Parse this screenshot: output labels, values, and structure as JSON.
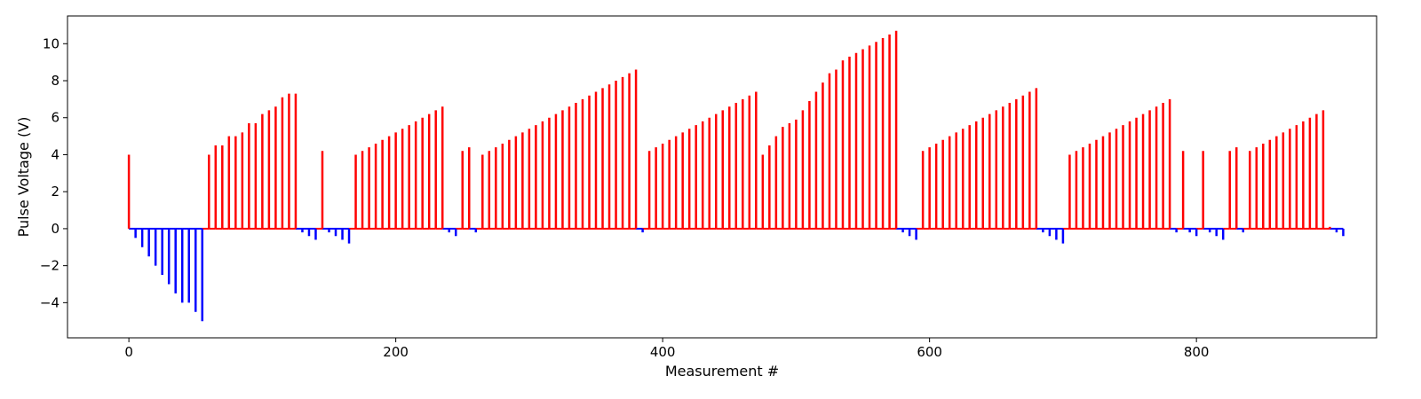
{
  "chart_data": {
    "type": "bar",
    "xlabel": "Measurement #",
    "ylabel": "Pulse Voltage (V)",
    "xlim": [
      -46,
      935
    ],
    "ylim": [
      -5.9,
      11.5
    ],
    "x_ticks": [
      0,
      200,
      400,
      600,
      800
    ],
    "y_ticks": [
      -4,
      -2,
      0,
      2,
      4,
      6,
      8,
      10
    ],
    "positive_color": "#ff0000",
    "negative_color": "#0000ff",
    "series": [
      {
        "values": [
          [
            0,
            4.0
          ],
          [
            5,
            -0.5
          ],
          [
            10,
            -1.0
          ],
          [
            15,
            -1.5
          ],
          [
            20,
            -2.0
          ],
          [
            25,
            -2.5
          ],
          [
            30,
            -3.0
          ],
          [
            35,
            -3.5
          ],
          [
            40,
            -4.0
          ],
          [
            45,
            -4.0
          ],
          [
            50,
            -4.5
          ],
          [
            55,
            -5.0
          ],
          [
            60,
            4.0
          ],
          [
            65,
            4.5
          ],
          [
            70,
            4.5
          ],
          [
            75,
            5.0
          ],
          [
            80,
            5.0
          ],
          [
            85,
            5.2
          ],
          [
            90,
            5.7
          ],
          [
            95,
            5.7
          ],
          [
            100,
            6.2
          ],
          [
            105,
            6.4
          ],
          [
            110,
            6.6
          ],
          [
            115,
            7.1
          ],
          [
            120,
            7.3
          ],
          [
            125,
            7.3
          ],
          [
            130,
            -0.2
          ],
          [
            135,
            -0.4
          ],
          [
            140,
            -0.6
          ],
          [
            145,
            4.2
          ],
          [
            150,
            -0.2
          ],
          [
            155,
            -0.4
          ],
          [
            160,
            -0.6
          ],
          [
            165,
            -0.8
          ],
          [
            170,
            4.0
          ],
          [
            175,
            4.2
          ],
          [
            180,
            4.4
          ],
          [
            185,
            4.6
          ],
          [
            190,
            4.8
          ],
          [
            195,
            5.0
          ],
          [
            200,
            5.2
          ],
          [
            205,
            5.4
          ],
          [
            210,
            5.6
          ],
          [
            215,
            5.8
          ],
          [
            220,
            6.0
          ],
          [
            225,
            6.2
          ],
          [
            230,
            6.4
          ],
          [
            235,
            6.6
          ],
          [
            240,
            -0.2
          ],
          [
            245,
            -0.4
          ],
          [
            250,
            4.2
          ],
          [
            255,
            4.4
          ],
          [
            260,
            -0.2
          ],
          [
            265,
            4.0
          ],
          [
            270,
            4.2
          ],
          [
            275,
            4.4
          ],
          [
            280,
            4.6
          ],
          [
            285,
            4.8
          ],
          [
            290,
            5.0
          ],
          [
            295,
            5.2
          ],
          [
            300,
            5.4
          ],
          [
            305,
            5.6
          ],
          [
            310,
            5.8
          ],
          [
            315,
            6.0
          ],
          [
            320,
            6.2
          ],
          [
            325,
            6.4
          ],
          [
            330,
            6.6
          ],
          [
            335,
            6.8
          ],
          [
            340,
            7.0
          ],
          [
            345,
            7.2
          ],
          [
            350,
            7.4
          ],
          [
            355,
            7.6
          ],
          [
            360,
            7.8
          ],
          [
            365,
            8.0
          ],
          [
            370,
            8.2
          ],
          [
            375,
            8.4
          ],
          [
            380,
            8.6
          ],
          [
            385,
            -0.2
          ],
          [
            390,
            4.2
          ],
          [
            395,
            4.4
          ],
          [
            400,
            4.6
          ],
          [
            405,
            4.8
          ],
          [
            410,
            5.0
          ],
          [
            415,
            5.2
          ],
          [
            420,
            5.4
          ],
          [
            425,
            5.6
          ],
          [
            430,
            5.8
          ],
          [
            435,
            6.0
          ],
          [
            440,
            6.2
          ],
          [
            445,
            6.4
          ],
          [
            450,
            6.6
          ],
          [
            455,
            6.8
          ],
          [
            460,
            7.0
          ],
          [
            465,
            7.2
          ],
          [
            470,
            7.4
          ],
          [
            475,
            4.0
          ],
          [
            480,
            4.5
          ],
          [
            485,
            5.0
          ],
          [
            490,
            5.5
          ],
          [
            495,
            5.7
          ],
          [
            500,
            5.9
          ],
          [
            505,
            6.4
          ],
          [
            510,
            6.9
          ],
          [
            515,
            7.4
          ],
          [
            520,
            7.9
          ],
          [
            525,
            8.4
          ],
          [
            530,
            8.6
          ],
          [
            535,
            9.1
          ],
          [
            540,
            9.3
          ],
          [
            545,
            9.5
          ],
          [
            550,
            9.7
          ],
          [
            555,
            9.9
          ],
          [
            560,
            10.1
          ],
          [
            565,
            10.3
          ],
          [
            570,
            10.5
          ],
          [
            575,
            10.7
          ],
          [
            580,
            -0.2
          ],
          [
            585,
            -0.4
          ],
          [
            590,
            -0.6
          ],
          [
            595,
            4.2
          ],
          [
            600,
            4.4
          ],
          [
            605,
            4.6
          ],
          [
            610,
            4.8
          ],
          [
            615,
            5.0
          ],
          [
            620,
            5.2
          ],
          [
            625,
            5.4
          ],
          [
            630,
            5.6
          ],
          [
            635,
            5.8
          ],
          [
            640,
            6.0
          ],
          [
            645,
            6.2
          ],
          [
            650,
            6.4
          ],
          [
            655,
            6.6
          ],
          [
            660,
            6.8
          ],
          [
            665,
            7.0
          ],
          [
            670,
            7.2
          ],
          [
            675,
            7.4
          ],
          [
            680,
            7.6
          ],
          [
            685,
            -0.2
          ],
          [
            690,
            -0.4
          ],
          [
            695,
            -0.6
          ],
          [
            700,
            -0.8
          ],
          [
            705,
            4.0
          ],
          [
            710,
            4.2
          ],
          [
            715,
            4.4
          ],
          [
            720,
            4.6
          ],
          [
            725,
            4.8
          ],
          [
            730,
            5.0
          ],
          [
            735,
            5.2
          ],
          [
            740,
            5.4
          ],
          [
            745,
            5.6
          ],
          [
            750,
            5.8
          ],
          [
            755,
            6.0
          ],
          [
            760,
            6.2
          ],
          [
            765,
            6.4
          ],
          [
            770,
            6.6
          ],
          [
            775,
            6.8
          ],
          [
            780,
            7.0
          ],
          [
            785,
            -0.2
          ],
          [
            790,
            4.2
          ],
          [
            795,
            -0.2
          ],
          [
            800,
            -0.4
          ],
          [
            805,
            4.2
          ],
          [
            810,
            -0.2
          ],
          [
            815,
            -0.4
          ],
          [
            820,
            -0.6
          ],
          [
            825,
            4.2
          ],
          [
            830,
            4.4
          ],
          [
            835,
            -0.2
          ],
          [
            840,
            4.2
          ],
          [
            845,
            4.4
          ],
          [
            850,
            4.6
          ],
          [
            855,
            4.8
          ],
          [
            860,
            5.0
          ],
          [
            865,
            5.2
          ],
          [
            870,
            5.4
          ],
          [
            875,
            5.6
          ],
          [
            880,
            5.8
          ],
          [
            885,
            6.0
          ],
          [
            890,
            6.2
          ],
          [
            895,
            6.4
          ],
          [
            900,
            0.1
          ],
          [
            905,
            -0.2
          ],
          [
            910,
            -0.4
          ]
        ]
      }
    ]
  }
}
